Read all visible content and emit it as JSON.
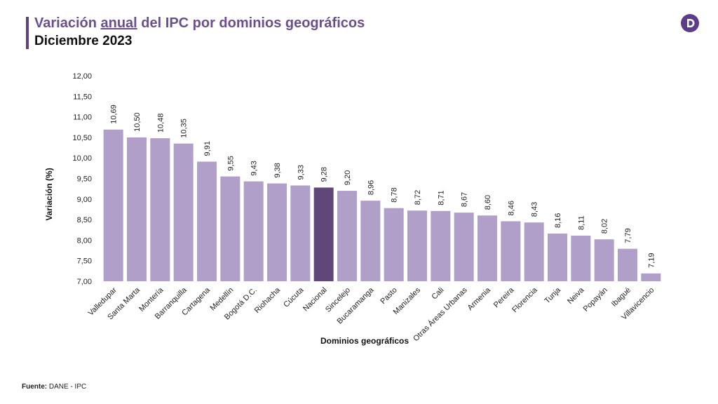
{
  "header": {
    "title_pre": "Variación ",
    "title_underlined": "anual",
    "title_post": " del IPC por dominios geográficos",
    "subtitle": "Diciembre 2023"
  },
  "logo_icon": "dane-logo-icon",
  "source": {
    "label": "Fuente:",
    "text": " DANE - IPC"
  },
  "colors": {
    "bar": "#b09fc8",
    "highlight": "#5f4879",
    "title": "#6a4f8c",
    "logo": "#5b3d8a"
  },
  "chart_data": {
    "type": "bar",
    "title": "",
    "xlabel": "Dominios geográficos",
    "ylabel": "Variación (%)",
    "ylim": [
      7.0,
      12.0
    ],
    "yticks": [
      "7,00",
      "7,50",
      "8,00",
      "8,50",
      "9,00",
      "9,50",
      "10,00",
      "10,50",
      "11,00",
      "11,50",
      "12,00"
    ],
    "grid": false,
    "highlight_category": "Nacional",
    "categories": [
      "Valledupar",
      "Santa Marta",
      "Montería",
      "Barranquilla",
      "Cartagena",
      "Medellín",
      "Bogotá D.C.",
      "Riohacha",
      "Cúcuta",
      "Nacional",
      "Sincelejo",
      "Bucaramanga",
      "Pasto",
      "Manizales",
      "Cali",
      "Otras Áreas Urbanas",
      "Armenia",
      "Pereira",
      "Florencia",
      "Tunja",
      "Neiva",
      "Popayán",
      "Ibagué",
      "Villavicencio"
    ],
    "values": [
      10.69,
      10.5,
      10.48,
      10.35,
      9.91,
      9.55,
      9.43,
      9.38,
      9.33,
      9.28,
      9.2,
      8.96,
      8.78,
      8.72,
      8.71,
      8.67,
      8.6,
      8.46,
      8.43,
      8.16,
      8.11,
      8.02,
      7.79,
      7.19
    ],
    "value_labels": [
      "10,69",
      "10,50",
      "10,48",
      "10,35",
      "9,91",
      "9,55",
      "9,43",
      "9,38",
      "9,33",
      "9,28",
      "9,20",
      "8,96",
      "8,78",
      "8,72",
      "8,71",
      "8,67",
      "8,60",
      "8,46",
      "8,43",
      "8,16",
      "8,11",
      "8,02",
      "7,79",
      "7,19"
    ]
  }
}
